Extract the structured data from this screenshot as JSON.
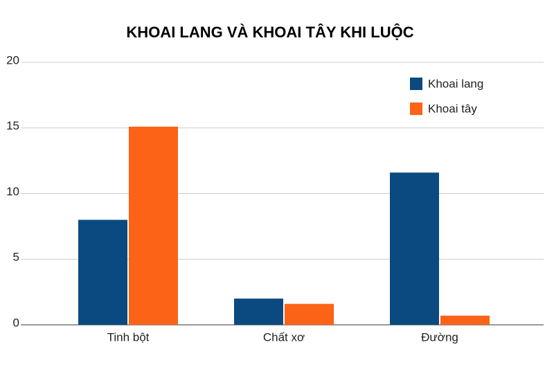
{
  "chart_data": {
    "type": "bar",
    "title": "KHOAI LANG VÀ KHOAI TÂY KHI LUỘC",
    "categories": [
      "Tinh bột",
      "Chất xơ",
      "Đường"
    ],
    "series": [
      {
        "name": "Khoai lang",
        "color": "#0b4a80",
        "values": [
          8,
          2,
          11.6
        ]
      },
      {
        "name": "Khoai tây",
        "color": "#fc6316",
        "values": [
          15.1,
          1.6,
          0.7
        ]
      }
    ],
    "ylim": [
      0,
      20
    ],
    "yticks": [
      0,
      5,
      10,
      15,
      20
    ],
    "grid": true,
    "legend": "top-right"
  }
}
